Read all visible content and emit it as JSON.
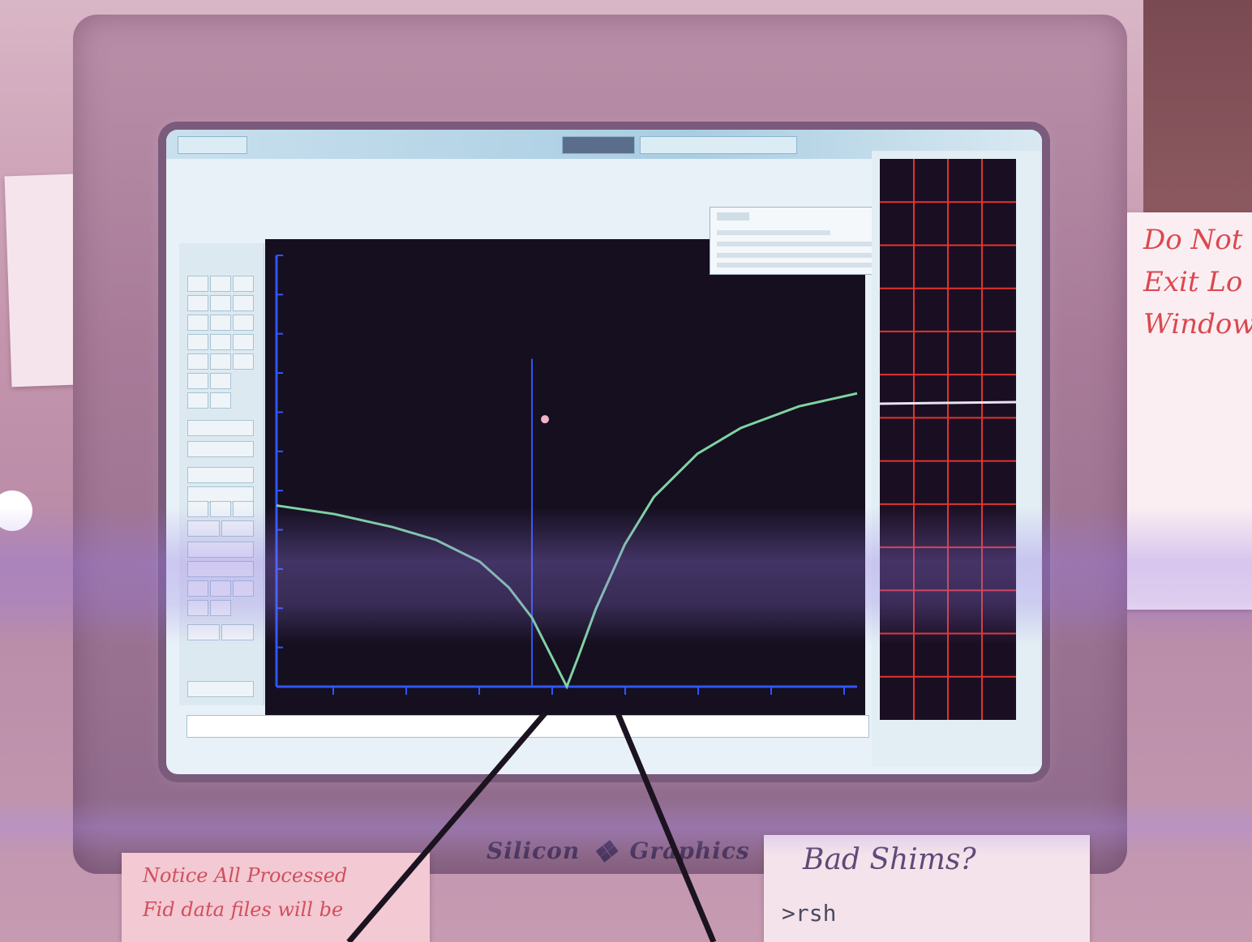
{
  "photo": {
    "colors": {
      "trace": "#7fd3a2",
      "axis": "#2f56ff",
      "plot_bg": "#150f1f",
      "scope_grid": "#e2342e",
      "scope_line": "#e9e4f2"
    },
    "sticky_notes": {
      "right_lines": [
        "Do Not",
        "Exit Lo",
        "Window"
      ],
      "bottom_left_lines": [
        "Notice All Processed",
        "Fid data files will be"
      ],
      "bottom_right_title": "Bad Shims?",
      "bottom_right_cmd": ">rsh"
    },
    "monitor_logo": {
      "left": "Silicon",
      "right": "Graphics"
    },
    "chart_data": {
      "type": "line",
      "x": [
        -1.0,
        -0.8,
        -0.6,
        -0.45,
        -0.3,
        -0.2,
        -0.12,
        -0.06,
        0.0,
        0.04,
        0.1,
        0.2,
        0.3,
        0.45,
        0.6,
        0.8,
        1.0
      ],
      "series": [
        {
          "values": [
            0.42,
            0.4,
            0.37,
            0.34,
            0.29,
            0.23,
            0.16,
            0.08,
            0.0,
            0.07,
            0.18,
            0.33,
            0.44,
            0.54,
            0.6,
            0.65,
            0.68
          ]
        }
      ],
      "xlim": [
        -1.0,
        1.0
      ],
      "ylim": [
        0,
        1.0
      ],
      "cursor_x": -0.12,
      "grid": false,
      "legend": "none"
    }
  }
}
